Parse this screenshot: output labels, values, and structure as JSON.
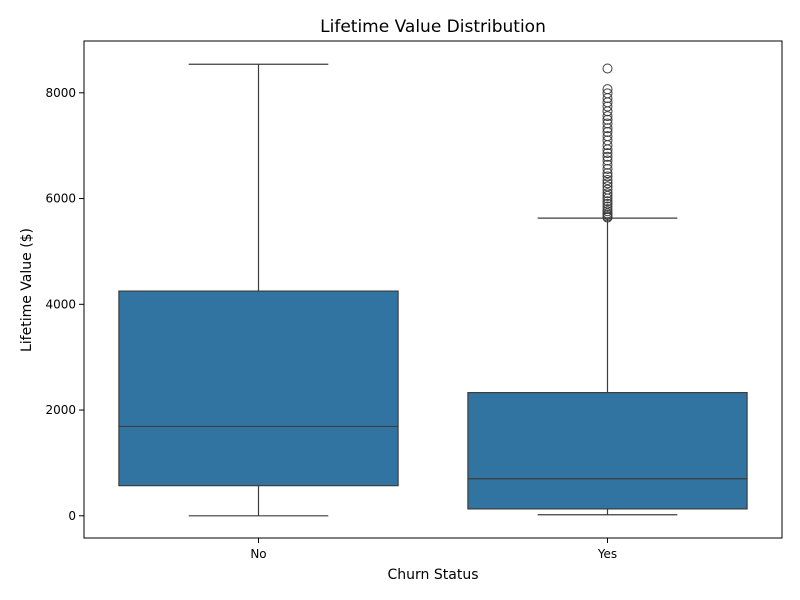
{
  "chart_data": {
    "type": "box",
    "title": "Lifetime Value Distribution",
    "xlabel": "Churn Status",
    "ylabel": "Lifetime Value ($)",
    "categories": [
      "No",
      "Yes"
    ],
    "ylim": [
      -420,
      8980
    ],
    "yticks": [
      0,
      2000,
      4000,
      6000,
      8000
    ],
    "grid": false,
    "colors": {
      "box": "#3274a1",
      "line": "#3d3d3d"
    },
    "boxes": [
      {
        "category": "No",
        "whisker_low": 0,
        "q1": 570,
        "median": 1690,
        "q3": 4250,
        "whisker_high": 8540,
        "outliers": []
      },
      {
        "category": "Yes",
        "whisker_low": 20,
        "q1": 130,
        "median": 700,
        "q3": 2330,
        "whisker_high": 5630,
        "outliers": [
          5640,
          5660,
          5690,
          5720,
          5760,
          5800,
          5850,
          5900,
          5950,
          6000,
          6050,
          6100,
          6170,
          6230,
          6290,
          6350,
          6420,
          6480,
          6560,
          6640,
          6720,
          6790,
          6860,
          6930,
          7010,
          7100,
          7180,
          7260,
          7330,
          7420,
          7490,
          7560,
          7650,
          7740,
          7820,
          7900,
          7990,
          8070,
          8460
        ]
      }
    ]
  }
}
